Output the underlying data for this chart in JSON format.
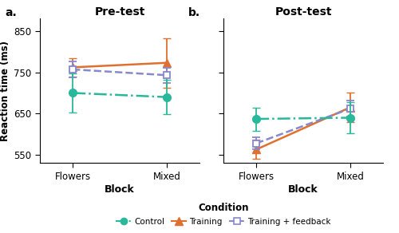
{
  "pre_test": {
    "x": [
      0,
      1
    ],
    "xtick_labels": [
      "Flowers",
      "Mixed"
    ],
    "control": {
      "y": [
        700,
        690
      ],
      "yerr": [
        47,
        42
      ]
    },
    "training": {
      "y": [
        762,
        773
      ],
      "yerr": [
        22,
        60
      ]
    },
    "training_feedback": {
      "y": [
        757,
        743
      ],
      "yerr": [
        20,
        18
      ]
    }
  },
  "post_test": {
    "x": [
      0,
      1
    ],
    "xtick_labels": [
      "Flowers",
      "Mixed"
    ],
    "control": {
      "y": [
        637,
        640
      ],
      "yerr": [
        28,
        38
      ]
    },
    "training": {
      "y": [
        563,
        665
      ],
      "yerr": [
        23,
        35
      ]
    },
    "training_feedback": {
      "y": [
        578,
        662
      ],
      "yerr": [
        15,
        20
      ]
    }
  },
  "ylim": [
    530,
    880
  ],
  "yticks": [
    550,
    650,
    750,
    850
  ],
  "ylabel": "Reaction time (ms)",
  "xlabel": "Block",
  "title_pre": "Pre-test",
  "title_post": "Post-test",
  "label_a": "a.",
  "label_b": "b.",
  "colors": {
    "control": "#2ab89a",
    "training": "#e07030",
    "training_feedback": "#8888cc"
  },
  "legend_title": "Condition",
  "legend_labels": [
    "Control",
    "Training",
    "Training + feedback"
  ]
}
